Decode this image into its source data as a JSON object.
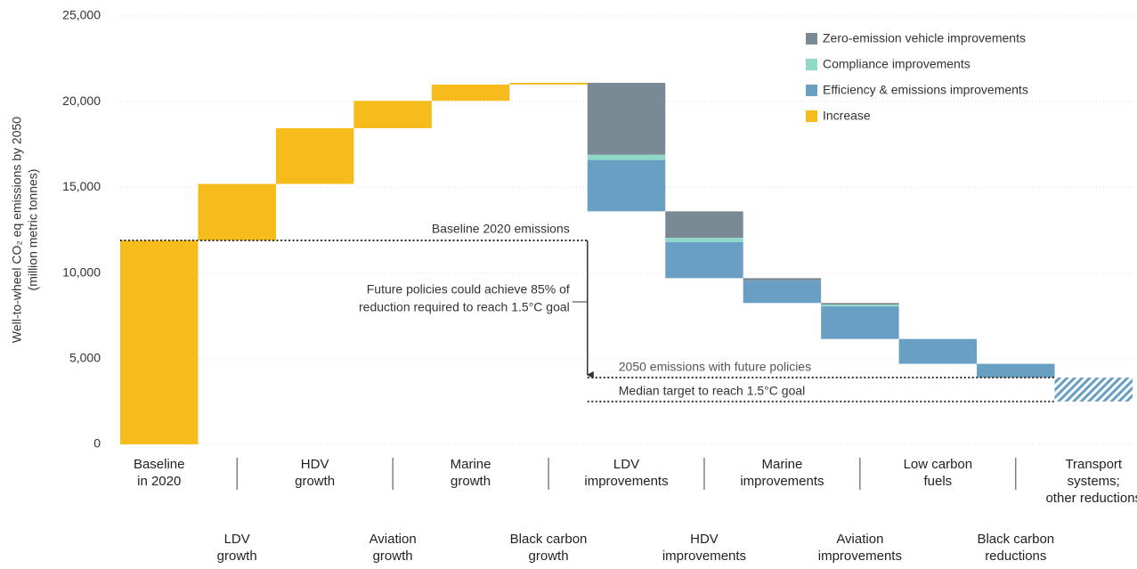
{
  "chart_data": {
    "type": "waterfall",
    "y_label": [
      "Well-to-wheel CO₂ eq emissions by 2050",
      "(million metric tonnes)"
    ],
    "categories": [
      "Baseline\nin 2020",
      "LDV\ngrowth",
      "HDV\ngrowth",
      "Aviation\ngrowth",
      "Marine\ngrowth",
      "Black carbon\ngrowth",
      "LDV\nimprovements",
      "HDV\nimprovements",
      "Marine\nimprovements",
      "Aviation\nimprovements",
      "Low carbon\nfuels",
      "Black carbon\nreductions",
      "Transport\nsystems;\nother reductions"
    ],
    "series": [
      {
        "name": "Zero-emission vehicle improvements",
        "color": "#7a8a94",
        "kind": "decrease",
        "values": [
          null,
          null,
          null,
          null,
          null,
          null,
          4200,
          1550,
          150,
          100,
          null,
          null,
          null
        ]
      },
      {
        "name": "Compliance improvements",
        "color": "#8fd9c8",
        "kind": "decrease",
        "values": [
          null,
          null,
          null,
          null,
          null,
          null,
          300,
          250,
          null,
          100,
          null,
          null,
          null
        ]
      },
      {
        "name": "Efficiency & emissions improvements",
        "color": "#6a9fc4",
        "kind": "decrease",
        "values": [
          null,
          null,
          null,
          null,
          null,
          null,
          3000,
          2100,
          1300,
          1900,
          1450,
          800,
          null
        ]
      },
      {
        "name": "Increase",
        "color": "#f6bc1c",
        "kind": "increase",
        "values": [
          11900,
          3300,
          3250,
          1600,
          950,
          100,
          null,
          null,
          null,
          null,
          null,
          null,
          null
        ]
      },
      {
        "color": "#6a9fc4",
        "kind": "decrease",
        "pattern": "hatch",
        "values": [
          null,
          null,
          null,
          null,
          null,
          null,
          null,
          null,
          null,
          null,
          null,
          null,
          1400
        ]
      }
    ],
    "reference_lines": [
      {
        "label": "Baseline 2020 emissions",
        "value": 11900
      },
      {
        "label": "2050 emissions with future policies",
        "value": 3900
      },
      {
        "label": "Median target to reach 1.5°C goal",
        "value": 2500
      }
    ],
    "annotation": [
      "Future policies could achieve 85% of",
      "reduction required to reach 1.5°C goal"
    ],
    "ylim": [
      0,
      25000
    ],
    "yticks": [
      0,
      {
        "value": 5000,
        "label": "5,000"
      },
      {
        "value": 10000,
        "label": "10,000"
      },
      {
        "value": 15000,
        "label": "15,000"
      },
      {
        "value": 20000,
        "label": "20,000"
      },
      {
        "value": 25000,
        "label": "25,000"
      }
    ],
    "grid": true,
    "legend": "top-right"
  }
}
